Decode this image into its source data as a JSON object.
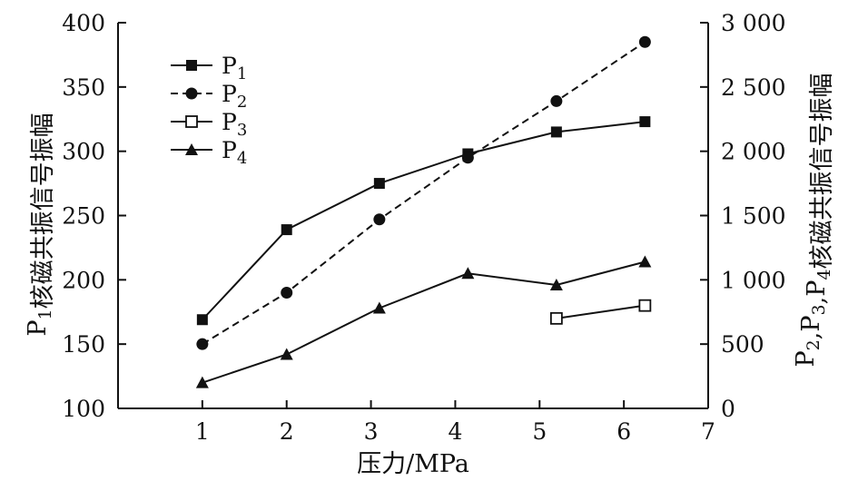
{
  "chart_data": {
    "type": "line",
    "xlabel": "压力/MPa",
    "ylabel_left": "P1核磁共振信号振幅",
    "ylabel_right": "P2,P3,P4核磁共振信号振幅",
    "xlim": [
      0,
      7
    ],
    "ylim_left": [
      100,
      400
    ],
    "ylim_right": [
      0,
      3000
    ],
    "x_ticks": [
      1,
      2,
      3,
      4,
      5,
      6,
      7
    ],
    "y_left_ticks": [
      100,
      150,
      200,
      250,
      300,
      350,
      400
    ],
    "y_right_ticks": [
      0,
      500,
      1000,
      1500,
      2000,
      2500,
      3000
    ],
    "x_tick_labels": [
      "1",
      "2",
      "3",
      "4",
      "5",
      "6",
      "7"
    ],
    "y_left_tick_labels": [
      "100",
      "150",
      "200",
      "250",
      "300",
      "350",
      "400"
    ],
    "y_right_tick_labels": [
      "0",
      "500",
      "1 000",
      "1 500",
      "2 000",
      "2 500",
      "3 000"
    ],
    "grid": false,
    "legend_position": "top-left",
    "series": [
      {
        "name": "P1",
        "legend_main": "P",
        "legend_sub": "1",
        "axis": "left",
        "marker": "filled-square",
        "line": "solid",
        "x": [
          1,
          2,
          3.1,
          4.15,
          5.2,
          6.25
        ],
        "y": [
          169,
          239,
          275,
          298,
          315,
          323
        ]
      },
      {
        "name": "P2",
        "legend_main": "P",
        "legend_sub": "2",
        "axis": "right",
        "marker": "filled-circle",
        "line": "dashed",
        "x": [
          1,
          2,
          3.1,
          4.15,
          5.2,
          6.25
        ],
        "y": [
          500,
          900,
          1470,
          1950,
          2390,
          2850
        ]
      },
      {
        "name": "P3",
        "legend_main": "P",
        "legend_sub": "3",
        "axis": "right",
        "marker": "open-square",
        "line": "solid",
        "x": [
          5.2,
          6.25
        ],
        "y": [
          700,
          800
        ]
      },
      {
        "name": "P4",
        "legend_main": "P",
        "legend_sub": "4",
        "axis": "right",
        "marker": "filled-triangle",
        "line": "solid",
        "x": [
          1,
          2,
          3.1,
          4.15,
          5.2,
          6.25
        ],
        "y": [
          200,
          420,
          780,
          1050,
          960,
          1140
        ]
      }
    ]
  }
}
